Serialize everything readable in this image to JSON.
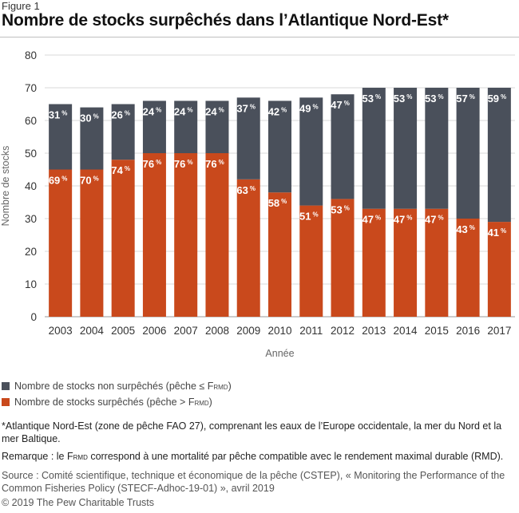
{
  "header": {
    "figure_label": "Figure 1",
    "title": "Nombre de stocks surpêchés dans l’Atlantique Nord-Est*"
  },
  "colors": {
    "non_overfished": "#4a505b",
    "overfished": "#c9491c",
    "grid": "#d9d9d9",
    "axis_text": "#333333"
  },
  "chart_data": {
    "type": "bar",
    "stacked": true,
    "xlabel": "Année",
    "ylabel": "Nombre de stocks",
    "ylim": [
      0,
      80
    ],
    "yticks": [
      0,
      10,
      20,
      30,
      40,
      50,
      60,
      70,
      80
    ],
    "grid": true,
    "legend_position": "bottom-left",
    "categories": [
      "2003",
      "2004",
      "2005",
      "2006",
      "2007",
      "2008",
      "2009",
      "2010",
      "2011",
      "2012",
      "2013",
      "2014",
      "2015",
      "2016",
      "2017"
    ],
    "series": [
      {
        "name": "Nombre de stocks surpêchés (pêche > F",
        "name_sub": "RMD",
        "name_end": ")",
        "color_key": "overfished",
        "values": [
          45,
          45,
          48,
          50,
          50,
          50,
          42,
          38,
          34,
          36,
          33,
          33,
          33,
          30,
          29
        ],
        "labels": [
          "69",
          "70",
          "74",
          "76",
          "76",
          "76",
          "63",
          "58",
          "51",
          "53",
          "47",
          "47",
          "47",
          "43",
          "41"
        ]
      },
      {
        "name": "Nombre de stocks non surpêchés (pêche ≤ F",
        "name_sub": "RMD",
        "name_end": ")",
        "color_key": "non_overfished",
        "values": [
          20,
          19,
          17,
          16,
          16,
          16,
          25,
          28,
          33,
          32,
          37,
          37,
          37,
          40,
          41
        ],
        "labels": [
          "31",
          "30",
          "26",
          "24",
          "24",
          "24",
          "37",
          "42",
          "49",
          "47",
          "53",
          "53",
          "53",
          "57",
          "59"
        ]
      }
    ],
    "label_unit": "%"
  },
  "notes": {
    "footnote": "*Atlantique Nord-Est (zone de pêche FAO 27), comprenant les eaux de l’Europe occidentale, la mer du Nord et la mer Baltique.",
    "remark_start": "Remarque : le F",
    "remark_sub": "RMD",
    "remark_end": " correspond à une mortalité par pêche compatible avec le rendement maximal durable (RMD).",
    "source": "Source : Comité scientifique, technique et économique de la pêche (CSTEP), « Monitoring the Performance of the Common Fisheries Policy (STECF-Adhoc-19-01) », avril 2019",
    "copyright": "© 2019 The Pew Charitable Trusts"
  }
}
